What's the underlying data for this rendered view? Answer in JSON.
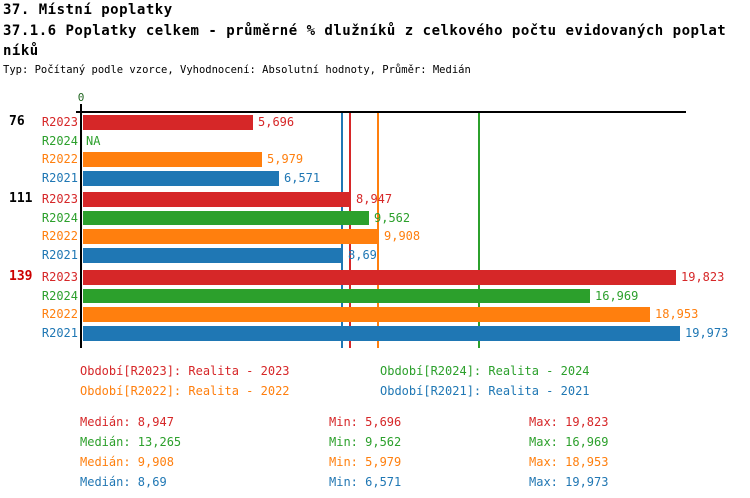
{
  "header": {
    "title": "37. Místní poplatky",
    "subtitle_line1": "37.1.6 Poplatky celkem - průměrné % dlužníků z celkového počtu evidovaných poplat",
    "subtitle_line2": "níků",
    "meta": "Typ: Počítaný podle vzorce, Vyhodnocení: Absolutní hodnoty, Průměr: Medián"
  },
  "colors": {
    "r2023": "#d62728",
    "r2024": "#2ca02c",
    "r2022": "#ff7f0e",
    "r2021": "#1f77b4",
    "axis": "#000000",
    "text": "#000000",
    "highlight_label": "#cc0000",
    "zero_tick": "#226622"
  },
  "chart_data": {
    "type": "bar",
    "orientation": "horizontal",
    "title": "37.1.6 Poplatky celkem - průměrné % dlužníků z celkového počtu evidovaných poplatníků",
    "x_axis": {
      "origin_label": "0",
      "min": 0,
      "max": 20.2,
      "gridlines": false
    },
    "series": [
      {
        "id": "R2023",
        "label": "R2023",
        "color_key": "r2023"
      },
      {
        "id": "R2024",
        "label": "R2024",
        "color_key": "r2024"
      },
      {
        "id": "R2022",
        "label": "R2022",
        "color_key": "r2022"
      },
      {
        "id": "R2021",
        "label": "R2021",
        "color_key": "r2021"
      }
    ],
    "groups": [
      {
        "label": "76",
        "label_color_key": "text",
        "values": [
          {
            "series": "R2023",
            "value": 5.696,
            "display": "5,696"
          },
          {
            "series": "R2024",
            "value": null,
            "display": "NA"
          },
          {
            "series": "R2022",
            "value": 5.979,
            "display": "5,979"
          },
          {
            "series": "R2021",
            "value": 6.571,
            "display": "6,571"
          }
        ]
      },
      {
        "label": "111",
        "label_color_key": "text",
        "values": [
          {
            "series": "R2023",
            "value": 8.947,
            "display": "8,947"
          },
          {
            "series": "R2024",
            "value": 9.562,
            "display": "9,562"
          },
          {
            "series": "R2022",
            "value": 9.908,
            "display": "9,908"
          },
          {
            "series": "R2021",
            "value": 8.69,
            "display": "8,69"
          }
        ]
      },
      {
        "label": "139",
        "label_color_key": "highlight_label",
        "values": [
          {
            "series": "R2023",
            "value": 19.823,
            "display": "19,823"
          },
          {
            "series": "R2024",
            "value": 16.969,
            "display": "16,969"
          },
          {
            "series": "R2022",
            "value": 18.953,
            "display": "18,953"
          },
          {
            "series": "R2021",
            "value": 19.973,
            "display": "19,973"
          }
        ]
      }
    ],
    "median_lines": [
      {
        "series": "R2021",
        "value": 8.69
      },
      {
        "series": "R2023",
        "value": 8.947
      },
      {
        "series": "R2022",
        "value": 9.908
      },
      {
        "series": "R2024",
        "value": 13.265
      }
    ]
  },
  "legend": {
    "items": [
      {
        "series": "R2023",
        "text": "Období[R2023]: Realita - 2023"
      },
      {
        "series": "R2024",
        "text": "Období[R2024]: Realita - 2024"
      },
      {
        "series": "R2022",
        "text": "Období[R2022]: Realita - 2022"
      },
      {
        "series": "R2021",
        "text": "Období[R2021]: Realita - 2021"
      }
    ]
  },
  "stats": {
    "rows": [
      {
        "series": "R2023",
        "median_label": "Medián: 8,947",
        "min_label": "Min: 5,696",
        "max_label": "Max: 19,823"
      },
      {
        "series": "R2024",
        "median_label": "Medián: 13,265",
        "min_label": "Min: 9,562",
        "max_label": "Max: 16,969"
      },
      {
        "series": "R2022",
        "median_label": "Medián: 9,908",
        "min_label": "Min: 5,979",
        "max_label": "Max: 18,953"
      },
      {
        "series": "R2021",
        "median_label": "Medián: 8,69",
        "min_label": "Min: 6,571",
        "max_label": "Max: 19,973"
      }
    ]
  }
}
